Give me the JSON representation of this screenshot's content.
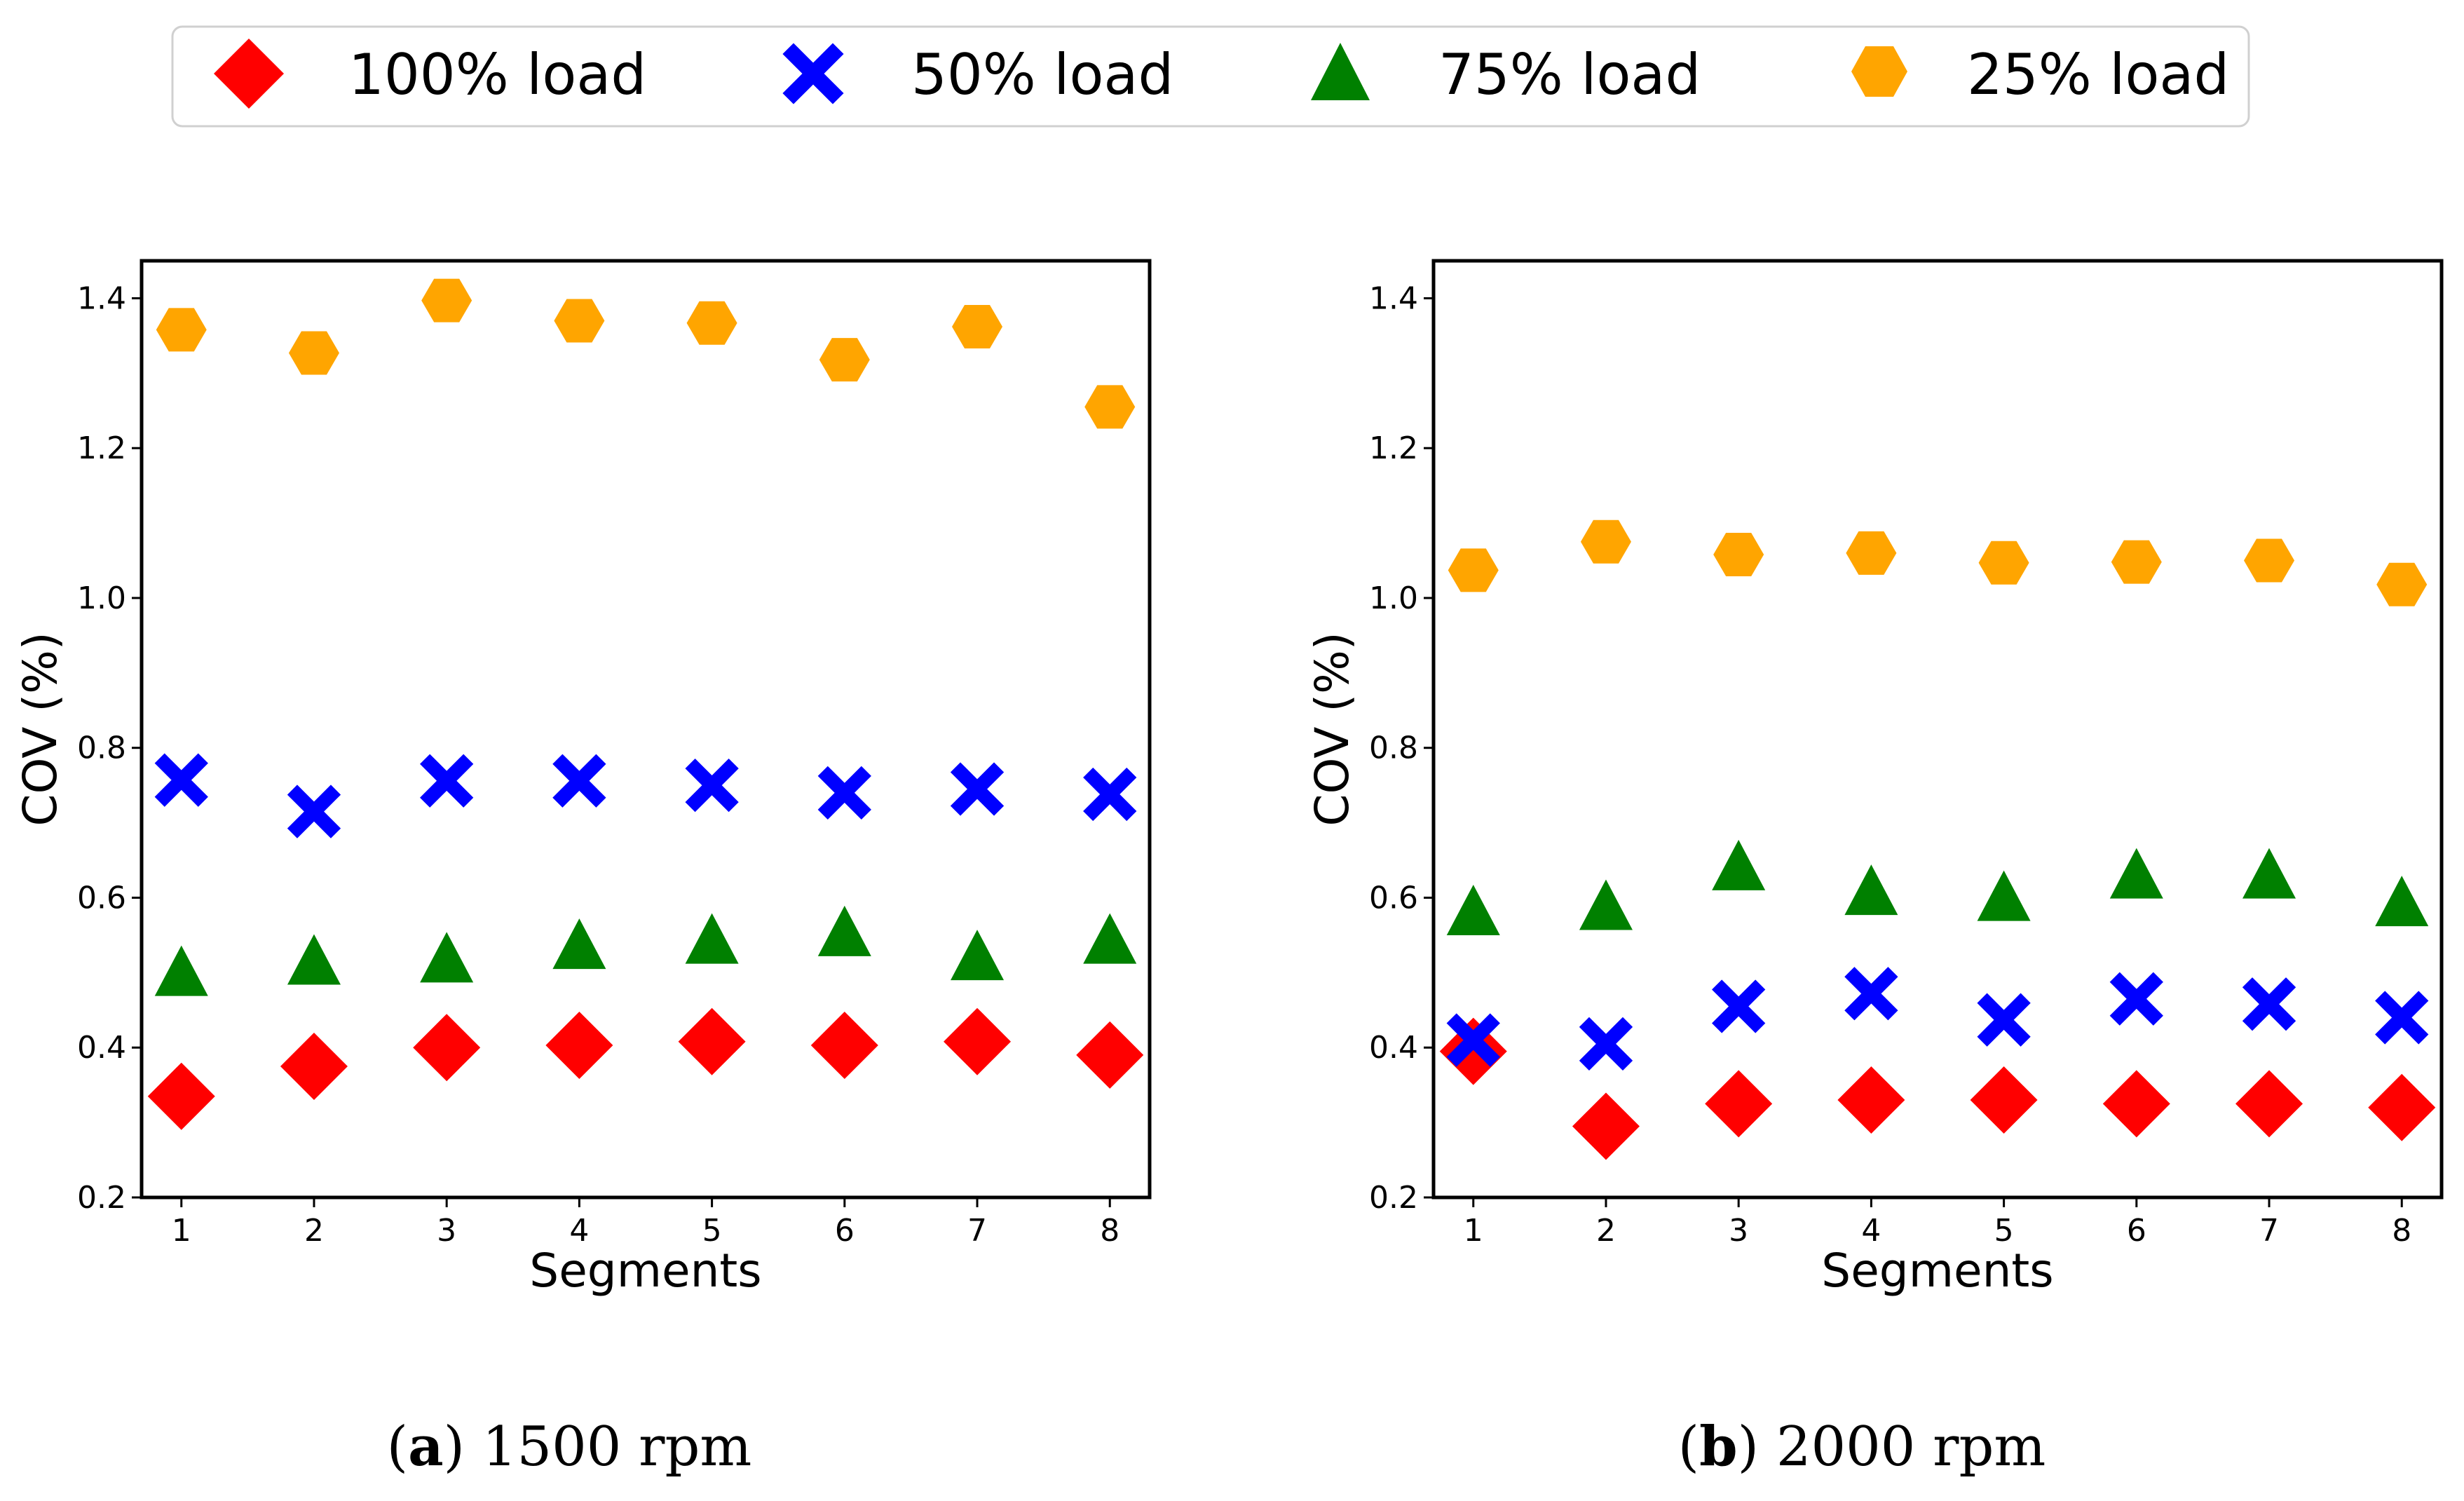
{
  "legend": {
    "items": [
      {
        "series": "100% load",
        "marker": "diamond-icon",
        "color": "#ff0000"
      },
      {
        "series": "50% load",
        "marker": "x-cross-icon",
        "color": "#0000ff"
      },
      {
        "series": "75% load",
        "marker": "triangle-icon",
        "color": "#008000"
      },
      {
        "series": "25% load",
        "marker": "hexagon-icon",
        "color": "#ffa500"
      }
    ]
  },
  "chart_data": [
    {
      "type": "scatter",
      "panel": "a",
      "caption_letter": "a",
      "caption_text": "1500 rpm",
      "title": "",
      "xlabel": "Segments",
      "ylabel": "COV (%)",
      "x": [
        1,
        2,
        3,
        4,
        5,
        6,
        7,
        8
      ],
      "xticks": [
        "1",
        "2",
        "3",
        "4",
        "5",
        "6",
        "7",
        "8"
      ],
      "ylim": [
        0.2,
        1.45
      ],
      "yticks": [
        "0.2",
        "0.4",
        "0.6",
        "0.8",
        "1.0",
        "1.2",
        "1.4"
      ],
      "ytick_values": [
        0.2,
        0.4,
        0.6,
        0.8,
        1.0,
        1.2,
        1.4
      ],
      "grid": false,
      "legend": "top",
      "series": [
        {
          "name": "100% load",
          "values": [
            0.335,
            0.375,
            0.4,
            0.403,
            0.408,
            0.403,
            0.408,
            0.39
          ]
        },
        {
          "name": "50% load",
          "values": [
            0.757,
            0.715,
            0.756,
            0.756,
            0.75,
            0.74,
            0.745,
            0.738
          ]
        },
        {
          "name": "75% load",
          "values": [
            0.497,
            0.512,
            0.515,
            0.533,
            0.54,
            0.55,
            0.518,
            0.54
          ]
        },
        {
          "name": "25% load",
          "values": [
            1.358,
            1.327,
            1.397,
            1.37,
            1.367,
            1.318,
            1.362,
            1.255
          ]
        }
      ]
    },
    {
      "type": "scatter",
      "panel": "b",
      "caption_letter": "b",
      "caption_text": "2000 rpm",
      "title": "",
      "xlabel": "Segments",
      "ylabel": "COV (%)",
      "x": [
        1,
        2,
        3,
        4,
        5,
        6,
        7,
        8
      ],
      "xticks": [
        "1",
        "2",
        "3",
        "4",
        "5",
        "6",
        "7",
        "8"
      ],
      "ylim": [
        0.2,
        1.45
      ],
      "yticks": [
        "0.2",
        "0.4",
        "0.6",
        "0.8",
        "1.0",
        "1.2",
        "1.4"
      ],
      "ytick_values": [
        0.2,
        0.4,
        0.6,
        0.8,
        1.0,
        1.2,
        1.4
      ],
      "grid": false,
      "legend": "top",
      "series": [
        {
          "name": "100% load",
          "values": [
            0.395,
            0.295,
            0.325,
            0.33,
            0.33,
            0.325,
            0.325,
            0.32
          ]
        },
        {
          "name": "50% load",
          "values": [
            0.41,
            0.405,
            0.455,
            0.472,
            0.437,
            0.465,
            0.458,
            0.44
          ]
        },
        {
          "name": "75% load",
          "values": [
            0.578,
            0.585,
            0.638,
            0.605,
            0.597,
            0.627,
            0.627,
            0.59
          ]
        },
        {
          "name": "25% load",
          "values": [
            1.037,
            1.075,
            1.058,
            1.06,
            1.047,
            1.048,
            1.05,
            1.018
          ]
        }
      ]
    }
  ]
}
